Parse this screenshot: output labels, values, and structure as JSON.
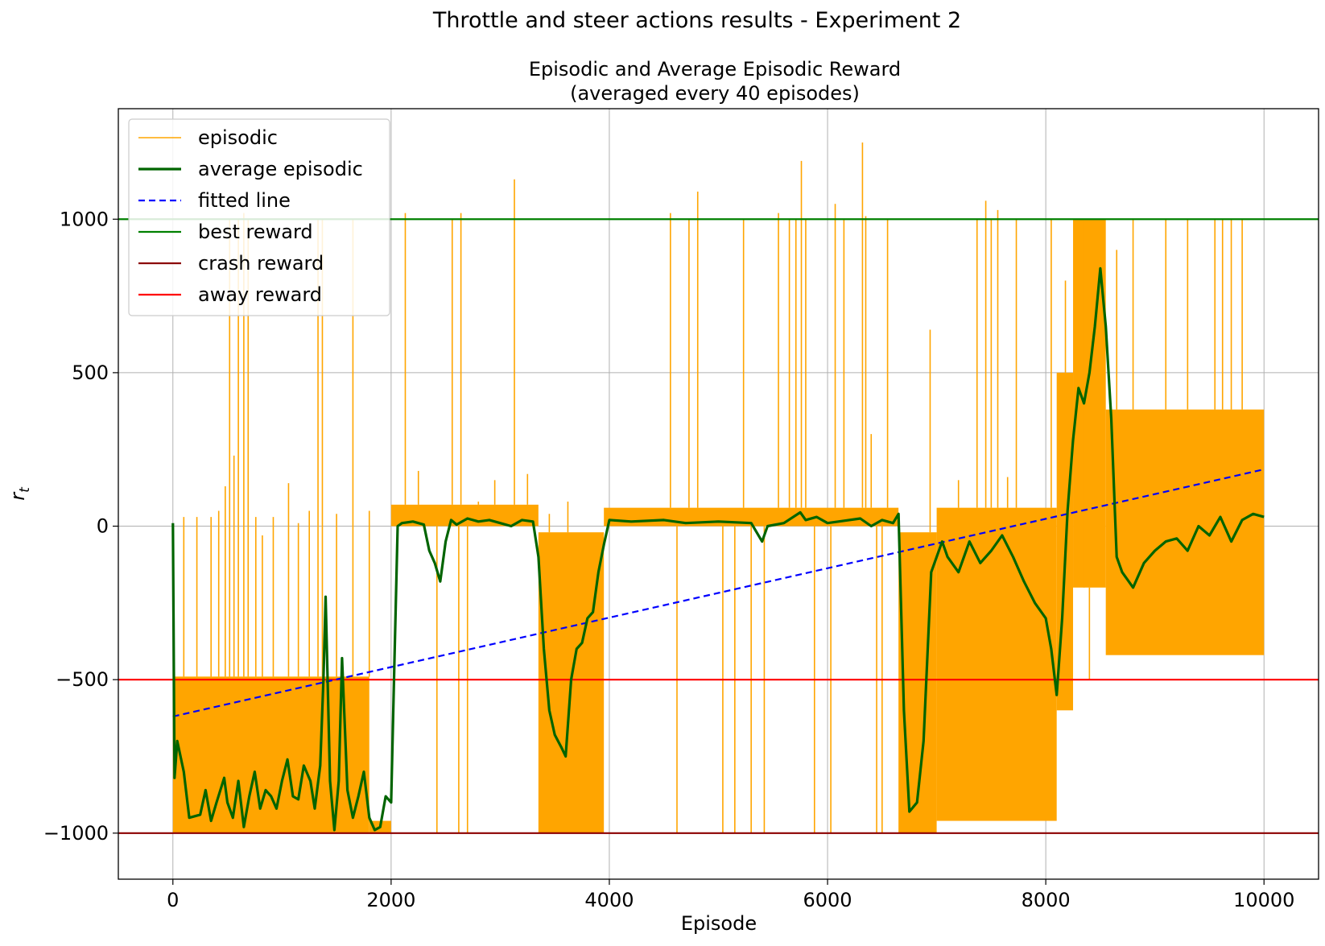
{
  "figure": {
    "suptitle": "Throttle and steer actions results - Experiment 2"
  },
  "chart_data": {
    "type": "line",
    "title_line1": "Episodic and Average Episodic Reward",
    "title_line2": "(averaged every 40 episodes)",
    "xlabel": "Episode",
    "ylabel": "r_t",
    "xlim": [
      -500,
      10500
    ],
    "ylim": [
      -1150,
      1360
    ],
    "xticks": [
      0,
      2000,
      4000,
      6000,
      8000,
      10000
    ],
    "xtick_labels": [
      "0",
      "2000",
      "4000",
      "6000",
      "8000",
      "10000"
    ],
    "yticks": [
      -1000,
      -500,
      0,
      500,
      1000
    ],
    "ytick_labels": [
      "−1000",
      "−500",
      "0",
      "500",
      "1000"
    ],
    "grid": true,
    "legend_position": "top-left",
    "colors": {
      "episodic": "#ffa500",
      "average": "#006400",
      "fitted": "#0000ff",
      "best": "#008000",
      "crash": "#8b0000",
      "away": "#ff0000"
    },
    "episodic_bands": [
      {
        "x0": 0,
        "x1": 1800,
        "low": -1000,
        "high": -490
      },
      {
        "x0": 1800,
        "x1": 2000,
        "low": -1000,
        "high": -960
      },
      {
        "x0": 2000,
        "x1": 3350,
        "low": 0,
        "high": 70
      },
      {
        "x0": 3350,
        "x1": 3950,
        "low": -1000,
        "high": -20
      },
      {
        "x0": 3950,
        "x1": 6650,
        "low": 0,
        "high": 60
      },
      {
        "x0": 6650,
        "x1": 7000,
        "low": -1000,
        "high": -20
      },
      {
        "x0": 7000,
        "x1": 8100,
        "low": -960,
        "high": 60
      },
      {
        "x0": 8100,
        "x1": 8250,
        "low": -600,
        "high": 500
      },
      {
        "x0": 8250,
        "x1": 8550,
        "low": -200,
        "high": 1000
      },
      {
        "x0": 8550,
        "x1": 10000,
        "low": -420,
        "high": 380
      }
    ],
    "episodic_spikes": [
      [
        100,
        30
      ],
      [
        170,
        -1000
      ],
      [
        220,
        30
      ],
      [
        350,
        30
      ],
      [
        420,
        50
      ],
      [
        480,
        130
      ],
      [
        520,
        1000
      ],
      [
        560,
        230
      ],
      [
        600,
        1000
      ],
      [
        650,
        1020
      ],
      [
        690,
        1000
      ],
      [
        760,
        30
      ],
      [
        820,
        -30
      ],
      [
        920,
        30
      ],
      [
        1060,
        140
      ],
      [
        1150,
        10
      ],
      [
        1250,
        50
      ],
      [
        1330,
        1000
      ],
      [
        1370,
        1000
      ],
      [
        1500,
        40
      ],
      [
        1650,
        1000
      ],
      [
        1800,
        50
      ],
      [
        2130,
        1020
      ],
      [
        2250,
        180
      ],
      [
        2420,
        -1000
      ],
      [
        2560,
        1000
      ],
      [
        2620,
        -1000
      ],
      [
        2640,
        1020
      ],
      [
        2700,
        -1000
      ],
      [
        2800,
        80
      ],
      [
        2950,
        150
      ],
      [
        3130,
        1130
      ],
      [
        3250,
        170
      ],
      [
        3450,
        40
      ],
      [
        3620,
        80
      ],
      [
        4560,
        1020
      ],
      [
        4620,
        -1000
      ],
      [
        4730,
        1000
      ],
      [
        4810,
        1090
      ],
      [
        5040,
        -1000
      ],
      [
        5150,
        -1000
      ],
      [
        5230,
        1000
      ],
      [
        5300,
        -1000
      ],
      [
        5420,
        -1000
      ],
      [
        5550,
        1020
      ],
      [
        5650,
        1000
      ],
      [
        5710,
        1000
      ],
      [
        5760,
        1190
      ],
      [
        5800,
        1000
      ],
      [
        5880,
        -1000
      ],
      [
        6030,
        -1000
      ],
      [
        6070,
        1050
      ],
      [
        6150,
        1000
      ],
      [
        6320,
        1250
      ],
      [
        6350,
        1010
      ],
      [
        6400,
        300
      ],
      [
        6450,
        -1000
      ],
      [
        6500,
        -1000
      ],
      [
        6550,
        1000
      ],
      [
        6940,
        640
      ],
      [
        7200,
        150
      ],
      [
        7370,
        1000
      ],
      [
        7450,
        1060
      ],
      [
        7500,
        1000
      ],
      [
        7560,
        1030
      ],
      [
        7650,
        160
      ],
      [
        7730,
        1000
      ],
      [
        8050,
        1000
      ],
      [
        8180,
        800
      ],
      [
        8350,
        1000
      ],
      [
        8400,
        -500
      ],
      [
        8650,
        900
      ],
      [
        8800,
        1000
      ],
      [
        9100,
        1000
      ],
      [
        9300,
        1000
      ],
      [
        9550,
        1000
      ],
      [
        9620,
        1000
      ],
      [
        9700,
        1000
      ],
      [
        9800,
        1000
      ]
    ],
    "average_episodic": [
      [
        0,
        10
      ],
      [
        15,
        -820
      ],
      [
        40,
        -700
      ],
      [
        100,
        -800
      ],
      [
        150,
        -950
      ],
      [
        250,
        -940
      ],
      [
        300,
        -860
      ],
      [
        350,
        -960
      ],
      [
        400,
        -900
      ],
      [
        470,
        -820
      ],
      [
        500,
        -900
      ],
      [
        550,
        -950
      ],
      [
        600,
        -830
      ],
      [
        650,
        -980
      ],
      [
        700,
        -880
      ],
      [
        750,
        -800
      ],
      [
        800,
        -920
      ],
      [
        850,
        -860
      ],
      [
        900,
        -880
      ],
      [
        950,
        -920
      ],
      [
        1000,
        -830
      ],
      [
        1050,
        -760
      ],
      [
        1100,
        -880
      ],
      [
        1150,
        -890
      ],
      [
        1200,
        -780
      ],
      [
        1260,
        -830
      ],
      [
        1300,
        -920
      ],
      [
        1350,
        -780
      ],
      [
        1380,
        -500
      ],
      [
        1400,
        -230
      ],
      [
        1440,
        -830
      ],
      [
        1480,
        -990
      ],
      [
        1520,
        -830
      ],
      [
        1550,
        -430
      ],
      [
        1600,
        -860
      ],
      [
        1650,
        -950
      ],
      [
        1700,
        -880
      ],
      [
        1750,
        -800
      ],
      [
        1800,
        -950
      ],
      [
        1850,
        -990
      ],
      [
        1900,
        -980
      ],
      [
        1950,
        -880
      ],
      [
        2000,
        -900
      ],
      [
        2030,
        -450
      ],
      [
        2060,
        0
      ],
      [
        2100,
        10
      ],
      [
        2200,
        15
      ],
      [
        2300,
        5
      ],
      [
        2350,
        -80
      ],
      [
        2400,
        -120
      ],
      [
        2450,
        -180
      ],
      [
        2500,
        -50
      ],
      [
        2550,
        20
      ],
      [
        2600,
        5
      ],
      [
        2700,
        25
      ],
      [
        2800,
        15
      ],
      [
        2900,
        20
      ],
      [
        3000,
        10
      ],
      [
        3100,
        0
      ],
      [
        3200,
        20
      ],
      [
        3300,
        15
      ],
      [
        3350,
        -100
      ],
      [
        3400,
        -400
      ],
      [
        3450,
        -600
      ],
      [
        3500,
        -680
      ],
      [
        3560,
        -720
      ],
      [
        3600,
        -750
      ],
      [
        3650,
        -500
      ],
      [
        3700,
        -400
      ],
      [
        3750,
        -380
      ],
      [
        3800,
        -300
      ],
      [
        3850,
        -280
      ],
      [
        3900,
        -150
      ],
      [
        3950,
        -60
      ],
      [
        4000,
        20
      ],
      [
        4200,
        15
      ],
      [
        4500,
        20
      ],
      [
        4700,
        10
      ],
      [
        5000,
        15
      ],
      [
        5300,
        10
      ],
      [
        5400,
        -50
      ],
      [
        5450,
        0
      ],
      [
        5600,
        10
      ],
      [
        5750,
        45
      ],
      [
        5800,
        20
      ],
      [
        5900,
        30
      ],
      [
        6000,
        10
      ],
      [
        6100,
        15
      ],
      [
        6300,
        25
      ],
      [
        6400,
        0
      ],
      [
        6500,
        20
      ],
      [
        6600,
        10
      ],
      [
        6650,
        40
      ],
      [
        6700,
        -600
      ],
      [
        6750,
        -930
      ],
      [
        6820,
        -900
      ],
      [
        6880,
        -700
      ],
      [
        6950,
        -150
      ],
      [
        7000,
        -100
      ],
      [
        7050,
        -50
      ],
      [
        7100,
        -100
      ],
      [
        7200,
        -150
      ],
      [
        7300,
        -50
      ],
      [
        7400,
        -120
      ],
      [
        7500,
        -80
      ],
      [
        7600,
        -30
      ],
      [
        7700,
        -100
      ],
      [
        7800,
        -180
      ],
      [
        7900,
        -250
      ],
      [
        8000,
        -300
      ],
      [
        8050,
        -400
      ],
      [
        8100,
        -550
      ],
      [
        8150,
        -300
      ],
      [
        8200,
        50
      ],
      [
        8250,
        280
      ],
      [
        8300,
        450
      ],
      [
        8350,
        400
      ],
      [
        8400,
        500
      ],
      [
        8450,
        650
      ],
      [
        8500,
        840
      ],
      [
        8550,
        650
      ],
      [
        8600,
        350
      ],
      [
        8650,
        -100
      ],
      [
        8700,
        -150
      ],
      [
        8800,
        -200
      ],
      [
        8900,
        -120
      ],
      [
        9000,
        -80
      ],
      [
        9100,
        -50
      ],
      [
        9200,
        -40
      ],
      [
        9300,
        -80
      ],
      [
        9400,
        0
      ],
      [
        9500,
        -30
      ],
      [
        9600,
        30
      ],
      [
        9700,
        -50
      ],
      [
        9800,
        20
      ],
      [
        9900,
        40
      ],
      [
        10000,
        30
      ]
    ],
    "fitted_line": {
      "x": [
        0,
        10000
      ],
      "y": [
        -620,
        185
      ]
    },
    "best_reward": 1000,
    "crash_reward": -1000,
    "away_reward": -500,
    "legend": [
      {
        "label": "episodic",
        "key": "episodic",
        "style": "thin"
      },
      {
        "label": "average episodic",
        "key": "average",
        "style": "thick"
      },
      {
        "label": "fitted line",
        "key": "fitted",
        "style": "dashed"
      },
      {
        "label": "best reward",
        "key": "best",
        "style": "solid"
      },
      {
        "label": "crash reward",
        "key": "crash",
        "style": "solid"
      },
      {
        "label": "away reward",
        "key": "away",
        "style": "solid"
      }
    ]
  }
}
